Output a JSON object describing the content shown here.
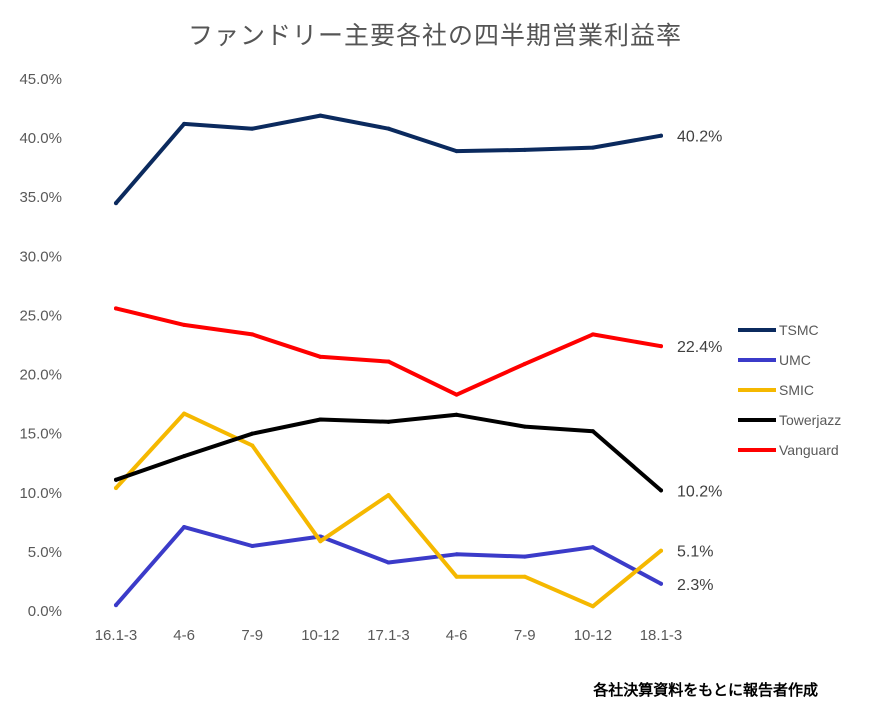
{
  "chart_data": {
    "type": "line",
    "title": "ファンドリー主要各社の四半期営業利益率",
    "categories": [
      "16.1-3",
      "4-6",
      "7-9",
      "10-12",
      "17.1-3",
      "4-6",
      "7-9",
      "10-12",
      "18.1-3"
    ],
    "y_ticks": [
      "0.0%",
      "5.0%",
      "10.0%",
      "15.0%",
      "20.0%",
      "25.0%",
      "30.0%",
      "35.0%",
      "40.0%",
      "45.0%"
    ],
    "ylim": [
      0,
      45
    ],
    "grid": false,
    "legend_position": "right",
    "series": [
      {
        "name": "TSMC",
        "color": "#0b2a5e",
        "values": [
          34.5,
          41.2,
          40.8,
          41.9,
          40.8,
          38.9,
          39.0,
          39.2,
          40.2
        ],
        "end_label": "40.2%"
      },
      {
        "name": "UMC",
        "color": "#3b3bc9",
        "values": [
          0.5,
          7.1,
          5.5,
          6.3,
          4.1,
          4.8,
          4.6,
          5.4,
          2.3
        ],
        "end_label": "2.3%"
      },
      {
        "name": "SMIC",
        "color": "#f5b800",
        "values": [
          10.4,
          16.7,
          14.0,
          5.9,
          9.8,
          2.9,
          2.9,
          0.4,
          5.1
        ],
        "end_label": "5.1%"
      },
      {
        "name": "Towerjazz",
        "color": "#000000",
        "values": [
          11.1,
          13.1,
          15.0,
          16.2,
          16.0,
          16.6,
          15.6,
          15.2,
          10.2
        ],
        "end_label": "10.2%"
      },
      {
        "name": "Vanguard",
        "color": "#ff0000",
        "values": [
          25.6,
          24.2,
          23.4,
          21.5,
          21.1,
          18.3,
          20.9,
          23.4,
          22.4
        ],
        "end_label": "22.4%"
      }
    ],
    "source_note": "各社決算資料をもとに報告者作成"
  }
}
